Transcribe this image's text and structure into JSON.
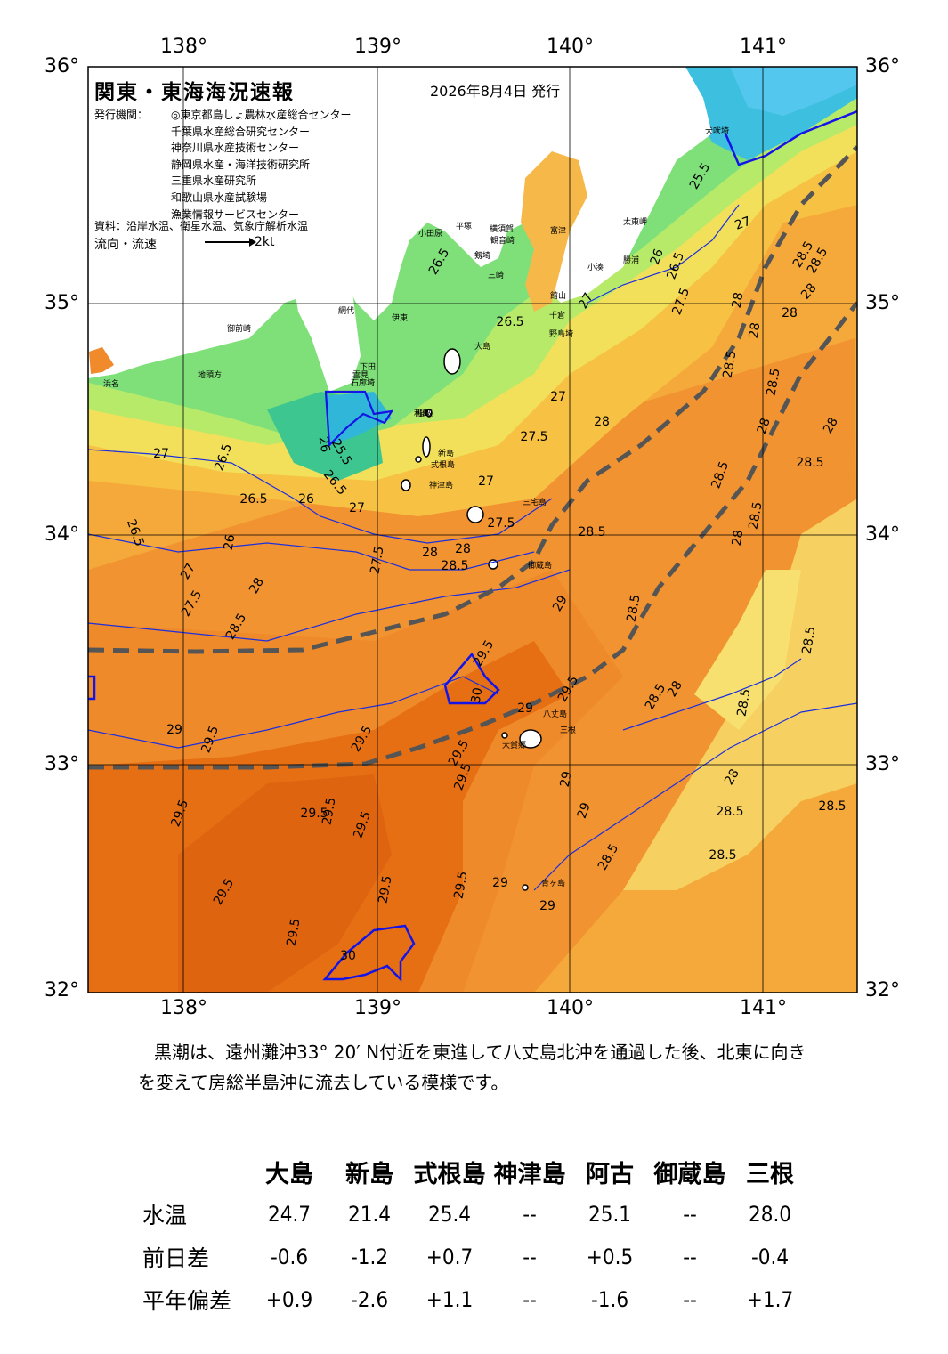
{
  "title": "関東・東海海況速報",
  "issue_date": "2026年8月4日 発行",
  "publisher": {
    "label": "発行機関：",
    "agencies": [
      "◎東京都島しょ農林水産総合センター",
      "千葉県水産総合研究センター",
      "神奈川県水産技術センター",
      "静岡県水産・海洋技術研究所",
      "三重県水産研究所",
      "和歌山県水産試験場",
      "漁業情報サービスセンター"
    ]
  },
  "source": "資料：沿岸水温、衛星水温、気象庁解析水温",
  "legend": {
    "label": "流向・流速",
    "unit": "2kt"
  },
  "axes": {
    "longitudes": [
      "138°",
      "139°",
      "140°",
      "141°"
    ],
    "latitudes": [
      "36°",
      "35°",
      "34°",
      "33°",
      "32°"
    ]
  },
  "place_names": [
    "犬吠埼",
    "太東岬",
    "小湊",
    "勝浦",
    "千倉",
    "野島埼",
    "館山",
    "富津",
    "横須賀",
    "観音崎",
    "剱埼",
    "三崎",
    "平塚",
    "小田原",
    "網代",
    "伊東",
    "稲取",
    "下田",
    "石廊埼",
    "雲見",
    "御前崎",
    "地頭方",
    "浜名",
    "大島",
    "利島",
    "新島",
    "式根島",
    "神津島",
    "三宅島",
    "御蔵島",
    "八丈島",
    "三根",
    "大賀郷",
    "青ヶ島"
  ],
  "contour_labels": [
    "25.5",
    "26",
    "26.5",
    "27",
    "27.5",
    "28",
    "28.5",
    "29",
    "29.5",
    "30"
  ],
  "colors": {
    "sea_coldest": "#3dbfe0",
    "sea_cold": "#5ed0b0",
    "sea_25": "#7fe07a",
    "sea_26": "#b8ea6a",
    "sea_27": "#f2e05a",
    "sea_275": "#f7c243",
    "sea_28": "#f5a93a",
    "sea_285": "#f19330",
    "sea_29": "#ef8a2a",
    "sea_295": "#e66f14",
    "land": "#ffffff",
    "contour": "#1a2fe0",
    "kuroshio_axis": "#555555"
  },
  "summary": "黒潮は、遠州灘沖33° 20′ N付近を東進して八丈島北沖を通過した後、北東に向きを変えて房総半島沖に流去している模様です。",
  "table": {
    "stations": [
      "大島",
      "新島",
      "式根島",
      "神津島",
      "阿古",
      "御蔵島",
      "三根"
    ],
    "rows": [
      {
        "label": "水温",
        "values": [
          "24.7",
          "21.4",
          "25.4",
          "--",
          "25.1",
          "--",
          "28.0"
        ]
      },
      {
        "label": "前日差",
        "values": [
          "-0.6",
          "-1.2",
          "+0.7",
          "--",
          "+0.5",
          "--",
          "-0.4"
        ]
      },
      {
        "label": "平年偏差",
        "values": [
          "+0.9",
          "-2.6",
          "+1.1",
          "--",
          "-1.6",
          "--",
          "+1.7"
        ]
      }
    ]
  }
}
